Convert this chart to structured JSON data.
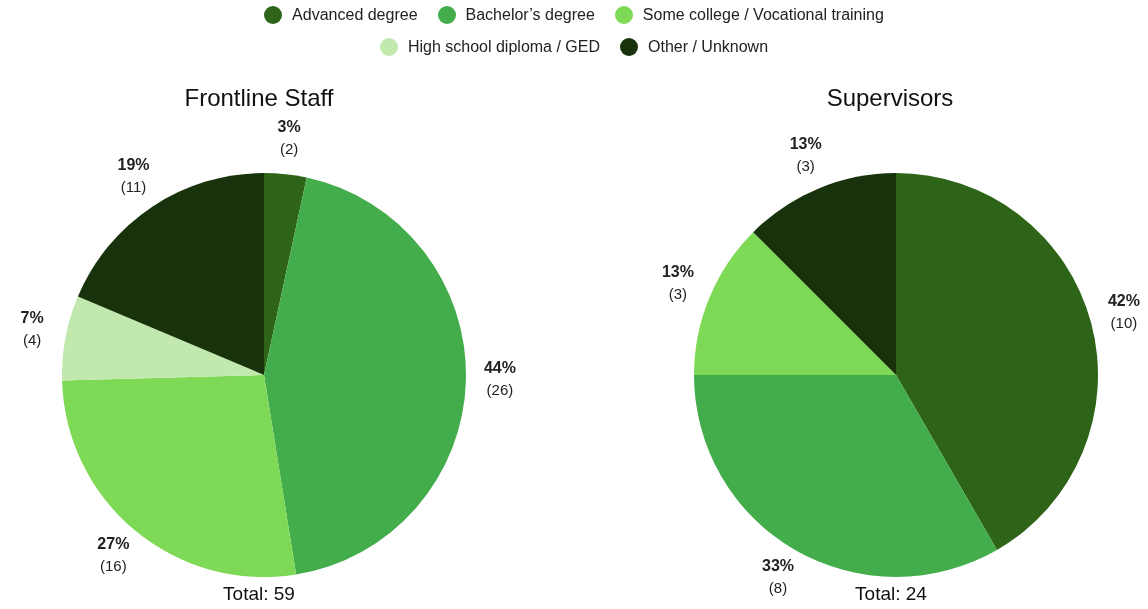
{
  "chart_data": [
    {
      "type": "pie",
      "title": "Frontline Staff",
      "categories": [
        "Advanced degree",
        "Bachelor’s degree",
        "Some college / Vocational training",
        "High school diploma / GED",
        "Other / Unknown"
      ],
      "values": [
        2,
        26,
        16,
        4,
        11
      ],
      "colors": [
        "#2e6417",
        "#43ac4b",
        "#7ed957",
        "#c1e9ad",
        "#18320b"
      ],
      "value_labels": [
        "3% (2)",
        "44% (26)",
        "27% (16)",
        "7% (4)",
        "19% (11)"
      ],
      "legend": "top",
      "annotations": [
        "Total: 59"
      ]
    },
    {
      "type": "pie",
      "title": "Supervisors",
      "categories": [
        null,
        null,
        null,
        null
      ],
      "values": [
        10,
        8,
        3,
        3
      ],
      "colors": [
        "#2e6417",
        "#43ac4b",
        "#7ed957",
        "#18320b"
      ],
      "value_labels": [
        "42% (10)",
        "33% (8)",
        "13% (3)",
        "13% (3)"
      ],
      "annotations": [
        "Total: 24"
      ]
    }
  ]
}
